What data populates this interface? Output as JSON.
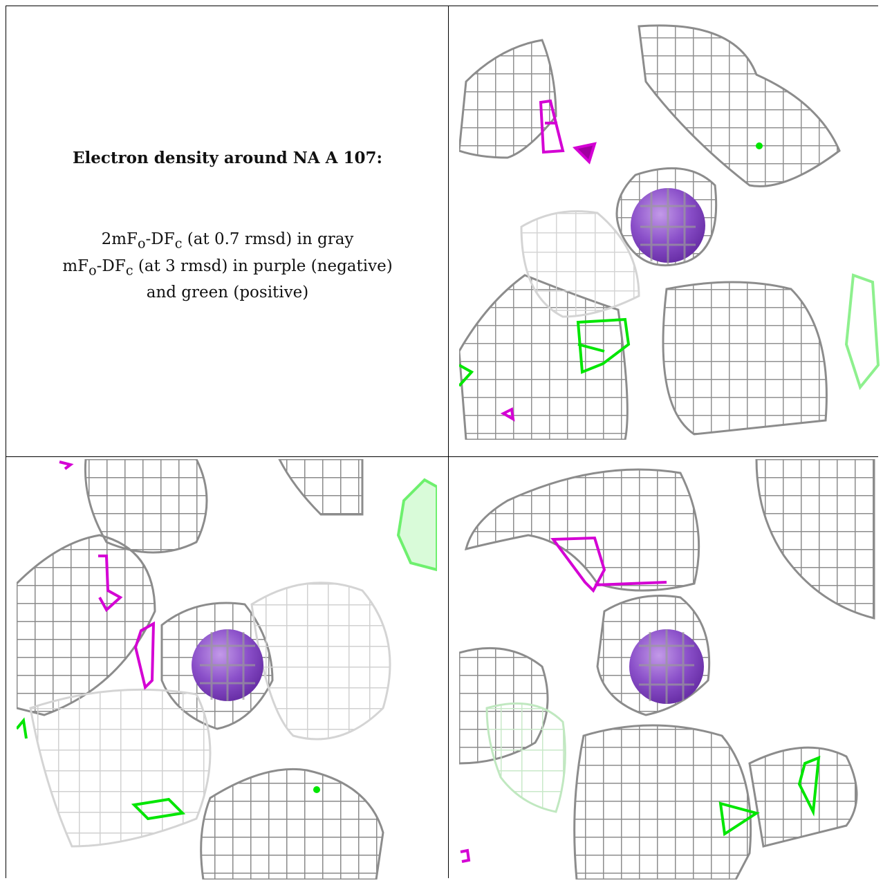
{
  "caption": {
    "title": "Electron density around NA A 107:",
    "line1": "2mFo-DFc (at 0.7 rmsd) in gray",
    "line2": "mFo-DFc (at 3 rmsd) in purple (negative)",
    "line3": "and green (positive)"
  },
  "colors": {
    "density_2fofc": "#8c8c8c",
    "density_negative": "#d400d4",
    "density_positive": "#00e600",
    "atom_sodium": "#8a4fc9",
    "frame": "#000000"
  },
  "panels": [
    {
      "name": "view-1",
      "atom": "NA A 107"
    },
    {
      "name": "view-2",
      "atom": "NA A 107"
    },
    {
      "name": "view-3",
      "atom": "NA A 107"
    }
  ]
}
